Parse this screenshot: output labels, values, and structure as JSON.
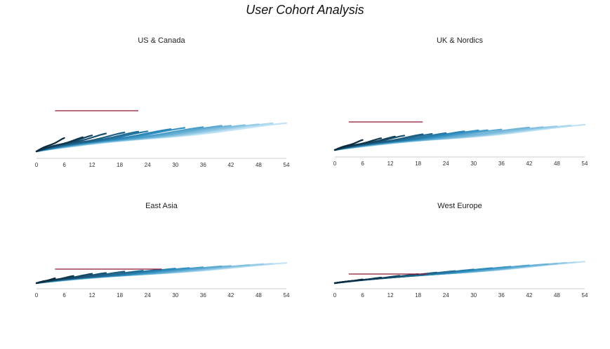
{
  "title": "User Cohort Analysis",
  "chart_data": [
    {
      "type": "line",
      "title": "US & Canada",
      "xlim": [
        0,
        54
      ],
      "xticks": [
        0,
        6,
        12,
        18,
        24,
        30,
        36,
        42,
        48,
        54
      ],
      "cohorts": [
        {
          "start": 0,
          "end": 6,
          "slope": 3.6
        },
        {
          "start": 2,
          "end": 10,
          "slope": 2.4
        },
        {
          "start": 4,
          "end": 12,
          "slope": 2.3
        },
        {
          "start": 6,
          "end": 15,
          "slope": 2.1
        },
        {
          "start": 8,
          "end": 19,
          "slope": 1.8
        },
        {
          "start": 10,
          "end": 22,
          "slope": 1.65
        },
        {
          "start": 12,
          "end": 24,
          "slope": 1.55
        },
        {
          "start": 14,
          "end": 29,
          "slope": 1.45
        },
        {
          "start": 16,
          "end": 32,
          "slope": 1.4
        },
        {
          "start": 18,
          "end": 36,
          "slope": 1.3
        },
        {
          "start": 20,
          "end": 40,
          "slope": 1.25
        },
        {
          "start": 22,
          "end": 42,
          "slope": 1.2
        },
        {
          "start": 24,
          "end": 45,
          "slope": 1.15
        },
        {
          "start": 26,
          "end": 48,
          "slope": 1.12
        },
        {
          "start": 28,
          "end": 51,
          "slope": 1.1
        },
        {
          "start": 30,
          "end": 54,
          "slope": 1.05
        }
      ],
      "reference": {
        "x": [
          4,
          22
        ],
        "y": 58
      }
    },
    {
      "type": "line",
      "title": "UK & Nordics",
      "xlim": [
        0,
        54
      ],
      "xticks": [
        0,
        6,
        12,
        18,
        24,
        30,
        36,
        42,
        48,
        54
      ],
      "cohorts": [
        {
          "start": 0,
          "end": 6,
          "slope": 2.7
        },
        {
          "start": 2,
          "end": 10,
          "slope": 2.0
        },
        {
          "start": 4,
          "end": 13,
          "slope": 1.8
        },
        {
          "start": 6,
          "end": 15,
          "slope": 1.7
        },
        {
          "start": 8,
          "end": 19,
          "slope": 1.5
        },
        {
          "start": 10,
          "end": 21,
          "slope": 1.4
        },
        {
          "start": 12,
          "end": 24,
          "slope": 1.3
        },
        {
          "start": 14,
          "end": 28,
          "slope": 1.25
        },
        {
          "start": 16,
          "end": 31,
          "slope": 1.2
        },
        {
          "start": 18,
          "end": 33,
          "slope": 1.15
        },
        {
          "start": 20,
          "end": 36,
          "slope": 1.1
        },
        {
          "start": 22,
          "end": 42,
          "slope": 1.05
        },
        {
          "start": 24,
          "end": 45,
          "slope": 1.0
        },
        {
          "start": 26,
          "end": 48,
          "slope": 0.98
        },
        {
          "start": 28,
          "end": 51,
          "slope": 0.96
        },
        {
          "start": 30,
          "end": 54,
          "slope": 0.94
        }
      ],
      "reference": {
        "x": [
          3,
          19
        ],
        "y": 40
      }
    },
    {
      "type": "line",
      "title": "East Asia",
      "xlim": [
        0,
        54
      ],
      "xticks": [
        0,
        6,
        12,
        18,
        24,
        30,
        36,
        42,
        48,
        54
      ],
      "cohorts": [
        {
          "start": 0,
          "end": 4,
          "slope": 1.9
        },
        {
          "start": 2,
          "end": 8,
          "slope": 1.5
        },
        {
          "start": 4,
          "end": 12,
          "slope": 1.35
        },
        {
          "start": 6,
          "end": 15,
          "slope": 1.2
        },
        {
          "start": 8,
          "end": 19,
          "slope": 1.1
        },
        {
          "start": 10,
          "end": 23,
          "slope": 1.0
        },
        {
          "start": 12,
          "end": 27,
          "slope": 0.95
        },
        {
          "start": 14,
          "end": 30,
          "slope": 0.92
        },
        {
          "start": 16,
          "end": 33,
          "slope": 0.88
        },
        {
          "start": 18,
          "end": 36,
          "slope": 0.85
        },
        {
          "start": 20,
          "end": 40,
          "slope": 0.82
        },
        {
          "start": 22,
          "end": 42,
          "slope": 0.8
        },
        {
          "start": 24,
          "end": 46,
          "slope": 0.78
        },
        {
          "start": 26,
          "end": 49,
          "slope": 0.77
        },
        {
          "start": 28,
          "end": 51,
          "slope": 0.76
        },
        {
          "start": 30,
          "end": 54,
          "slope": 0.75
        }
      ],
      "reference": {
        "x": [
          4,
          27
        ],
        "y": 20
      }
    },
    {
      "type": "line",
      "title": "West Europe",
      "xlim": [
        0,
        54
      ],
      "xticks": [
        0,
        6,
        12,
        18,
        24,
        30,
        36,
        42,
        48,
        54
      ],
      "cohorts": [
        {
          "start": 0,
          "end": 6,
          "slope": 1.0
        },
        {
          "start": 2,
          "end": 10,
          "slope": 0.95
        },
        {
          "start": 4,
          "end": 14,
          "slope": 0.92
        },
        {
          "start": 6,
          "end": 18,
          "slope": 0.9
        },
        {
          "start": 8,
          "end": 22,
          "slope": 0.88
        },
        {
          "start": 10,
          "end": 26,
          "slope": 0.87
        },
        {
          "start": 12,
          "end": 30,
          "slope": 0.86
        },
        {
          "start": 14,
          "end": 34,
          "slope": 0.85
        },
        {
          "start": 16,
          "end": 38,
          "slope": 0.84
        },
        {
          "start": 18,
          "end": 42,
          "slope": 0.83
        },
        {
          "start": 20,
          "end": 46,
          "slope": 0.82
        },
        {
          "start": 22,
          "end": 48,
          "slope": 0.81
        },
        {
          "start": 24,
          "end": 50,
          "slope": 0.81
        },
        {
          "start": 26,
          "end": 52,
          "slope": 0.8
        },
        {
          "start": 28,
          "end": 54,
          "slope": 0.8
        }
      ],
      "reference": {
        "x": [
          3,
          20
        ],
        "y": 13
      }
    }
  ],
  "colors": {
    "cohort_dark": "#0b2a3d",
    "cohort_light": "#bfe3f5",
    "reference": "#8e1530",
    "axis": "#cccccc"
  }
}
